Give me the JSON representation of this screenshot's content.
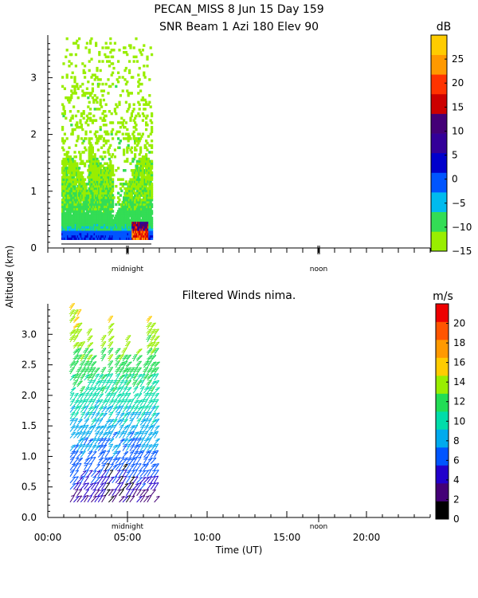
{
  "header": {
    "line1": "PECAN_MISS    8 Jun 15 Day 159",
    "line2": "SNR Beam 1 Azi 180 Elev 90"
  },
  "shared_ylabel": "Altitude (km)",
  "shared_xlabel": "Time (UT)",
  "chart_data": [
    {
      "type": "heatmap",
      "title": "SNR Beam 1 Azi 180 Elev 90",
      "xlabel": "",
      "ylabel": "Altitude (km)",
      "y_ticks": [
        "0",
        "1",
        "2",
        "3"
      ],
      "ylim": [
        0,
        3.75
      ],
      "x_range_hours": [
        0,
        24
      ],
      "day_markers": [
        {
          "label": "midnight",
          "hour": 5
        },
        {
          "label": "noon",
          "hour": 17
        }
      ],
      "colorbar": {
        "unit": "dB",
        "ticks": [
          "25",
          "20",
          "15",
          "10",
          "5",
          "0",
          "−5",
          "−10",
          "−15"
        ],
        "range": [
          -15,
          30
        ],
        "colors": [
          "#99ee00",
          "#33dd55",
          "#00bbee",
          "#0055ff",
          "#0000cc",
          "#330099",
          "#440077",
          "#cc0000",
          "#ff3300",
          "#ff9900",
          "#ffcc00"
        ]
      },
      "data_extent": {
        "time_hours": [
          0.85,
          6.5
        ],
        "altitude_km": [
          0.15,
          3.7
        ]
      }
    },
    {
      "type": "scatter",
      "title": "Filtered Winds nima.",
      "xlabel": "Time (UT)",
      "ylabel": "Altitude (km)",
      "x_ticks": [
        "00:00",
        "05:00",
        "10:00",
        "15:00",
        "20:00"
      ],
      "y_ticks": [
        "0.0",
        "0.5",
        "1.0",
        "1.5",
        "2.0",
        "2.5",
        "3.0"
      ],
      "ylim": [
        0,
        3.5
      ],
      "x_range_hours": [
        0,
        24
      ],
      "day_markers": [
        {
          "label": "midnight",
          "hour": 5
        },
        {
          "label": "noon",
          "hour": 17
        }
      ],
      "colorbar": {
        "unit": "m/s",
        "ticks": [
          "20",
          "18",
          "16",
          "14",
          "12",
          "10",
          "8",
          "6",
          "4",
          "2",
          "0"
        ],
        "range": [
          0,
          22
        ],
        "colors": [
          "#000000",
          "#440077",
          "#2200cc",
          "#0055ff",
          "#00aaee",
          "#00ddaa",
          "#22dd55",
          "#99ee00",
          "#ffcc00",
          "#ff9900",
          "#ff5500",
          "#ee0000"
        ]
      },
      "data_extent": {
        "time_hours": [
          1.4,
          6.7
        ],
        "altitude_km": [
          0.2,
          3.45
        ]
      }
    }
  ]
}
